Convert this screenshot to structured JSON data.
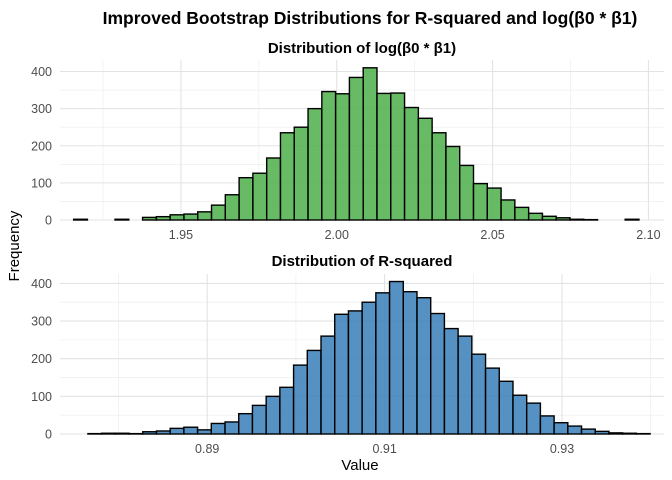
{
  "chart_data": {
    "type": "bar",
    "title": "Improved Bootstrap Distributions for R-squared and log(β0 * β1)",
    "xlabel": "Value",
    "ylabel": "Frequency",
    "grid": true,
    "fill_opacity": 0.85,
    "panels": [
      {
        "title": "Distribution of log(β0 * β1)",
        "fill": "#4DAF4A",
        "xlim": [
          1.9112,
          2.105
        ],
        "ylim": [
          0,
          431
        ],
        "x_ticks": [
          "1.95",
          "2.00",
          "2.05",
          "2.10"
        ],
        "x_tick_values": [
          1.95,
          2.0,
          2.05,
          2.1
        ],
        "y_ticks": [
          "0",
          "100",
          "200",
          "300",
          "400"
        ],
        "y_tick_values": [
          0,
          100,
          200,
          300,
          400
        ],
        "bin_start": 1.91558,
        "bin_width": 0.004424,
        "counts": [
          2,
          0,
          0,
          2,
          0,
          7,
          9,
          14,
          16,
          22,
          40,
          68,
          114,
          126,
          167,
          235,
          250,
          300,
          346,
          340,
          384,
          410,
          341,
          342,
          303,
          274,
          235,
          198,
          147,
          98,
          86,
          54,
          34,
          18,
          10,
          6,
          2,
          1,
          0,
          0,
          2
        ]
      },
      {
        "title": "Distribution of R-squared",
        "fill": "#377EB8",
        "xlim": [
          0.8734,
          0.9415
        ],
        "ylim": [
          0,
          425
        ],
        "x_ticks": [
          "0.89",
          "0.91",
          "0.93"
        ],
        "x_tick_values": [
          0.89,
          0.91,
          0.93
        ],
        "y_ticks": [
          "0",
          "100",
          "200",
          "300",
          "400"
        ],
        "y_tick_values": [
          0,
          100,
          200,
          300,
          400
        ],
        "bin_start": 0.875,
        "bin_width": 0.001546,
        "counts": [
          0,
          1,
          2,
          2,
          1,
          6,
          8,
          15,
          18,
          11,
          28,
          32,
          54,
          76,
          100,
          124,
          183,
          222,
          260,
          318,
          327,
          350,
          375,
          405,
          378,
          362,
          320,
          280,
          260,
          212,
          175,
          140,
          103,
          82,
          48,
          30,
          21,
          13,
          7,
          3,
          2,
          1
        ]
      }
    ]
  }
}
